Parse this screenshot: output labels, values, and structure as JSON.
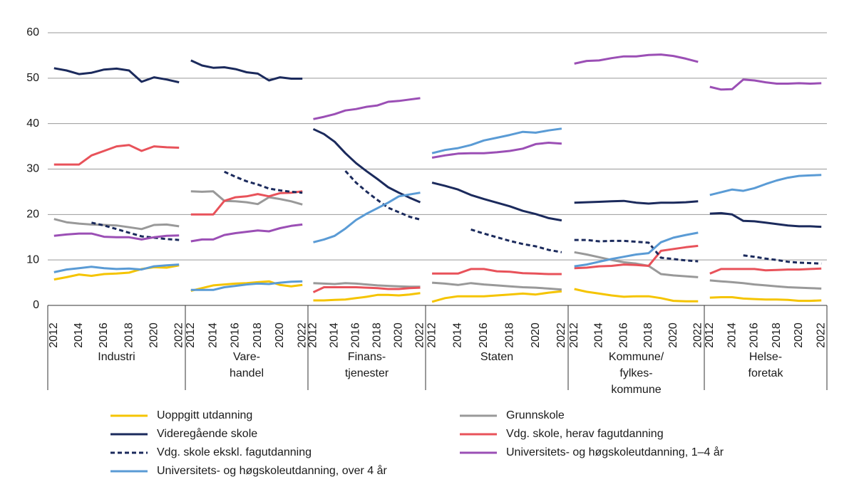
{
  "chart_data": {
    "type": "line",
    "ylim": [
      0,
      60
    ],
    "yticks": [
      0,
      10,
      20,
      30,
      40,
      50,
      60
    ],
    "grid": true,
    "categories": [
      2012,
      null,
      2014,
      null,
      2016,
      null,
      2018,
      null,
      2020,
      null,
      2022
    ],
    "panels": [
      [
        "Industri"
      ],
      [
        "Vare-",
        "handel"
      ],
      [
        "Finans-",
        "tjenester"
      ],
      [
        "Staten"
      ],
      [
        "Kommune/",
        "fylkes-",
        "kommune"
      ],
      [
        "Helse-",
        "foretak"
      ]
    ],
    "series": [
      {
        "name": "Uoppgitt utdanning",
        "color": "#f5c400",
        "dashed": false,
        "values": [
          [
            5.7,
            6.2,
            6.8,
            6.5,
            6.9,
            7.0,
            7.2,
            8.0,
            8.4,
            8.3,
            8.8
          ],
          [
            3.2,
            3.8,
            4.4,
            4.6,
            4.8,
            4.9,
            5.1,
            5.3,
            4.5,
            4.2,
            4.5
          ],
          [
            1.1,
            1.1,
            1.2,
            1.3,
            1.6,
            1.9,
            2.3,
            2.3,
            2.2,
            2.4,
            2.7
          ],
          [
            0.8,
            1.6,
            2.0,
            2.0,
            2.0,
            2.2,
            2.4,
            2.6,
            2.4,
            2.8,
            3.1
          ],
          [
            3.6,
            3.0,
            2.6,
            2.2,
            1.9,
            2.0,
            2.0,
            1.6,
            1.0,
            0.9,
            0.9
          ],
          [
            1.7,
            1.8,
            1.8,
            1.5,
            1.4,
            1.3,
            1.3,
            1.2,
            1.0,
            1.0,
            1.1
          ]
        ]
      },
      {
        "name": "Grunnskole",
        "color": "#999999",
        "dashed": false,
        "values": [
          [
            19.0,
            18.3,
            18.0,
            17.8,
            17.7,
            17.6,
            17.2,
            16.8,
            17.7,
            17.8,
            17.4
          ],
          [
            25.1,
            25.0,
            25.1,
            23.0,
            22.9,
            22.7,
            22.3,
            23.8,
            23.4,
            22.9,
            22.2
          ],
          [
            4.9,
            4.8,
            4.7,
            4.9,
            4.8,
            4.6,
            4.4,
            4.3,
            4.2,
            4.1,
            4.1
          ],
          [
            5.0,
            4.8,
            4.5,
            4.9,
            4.6,
            4.4,
            4.2,
            4.0,
            3.9,
            3.7,
            3.5
          ],
          [
            11.7,
            11.2,
            10.6,
            10.0,
            9.5,
            9.2,
            8.7,
            6.9,
            6.6,
            6.4,
            6.2
          ],
          [
            5.5,
            5.3,
            5.1,
            4.9,
            4.6,
            4.4,
            4.2,
            4.0,
            3.9,
            3.8,
            3.7
          ]
        ]
      },
      {
        "name": "Videregående skole",
        "color": "#1b2a5c",
        "dashed": false,
        "values": [
          [
            52.2,
            51.7,
            50.9,
            51.2,
            51.9,
            52.1,
            51.7,
            49.2,
            50.2,
            49.7,
            49.1
          ],
          [
            53.9,
            52.8,
            52.3,
            52.4,
            52.0,
            51.3,
            51.0,
            49.5,
            50.2,
            49.9,
            49.9
          ],
          [
            38.8,
            37.7,
            36.0,
            33.5,
            31.3,
            29.5,
            27.8,
            26.0,
            24.8,
            23.7,
            22.7
          ],
          [
            27.0,
            26.3,
            25.5,
            24.3,
            23.4,
            22.6,
            21.8,
            20.8,
            20.1,
            19.2,
            18.7
          ],
          [
            22.6,
            22.7,
            22.8,
            22.9,
            23.0,
            22.6,
            22.4,
            22.6,
            22.6,
            22.7,
            22.9
          ],
          [
            20.2,
            20.3,
            20.0,
            18.6,
            18.5,
            18.2,
            17.9,
            17.6,
            17.4,
            17.4,
            17.3
          ]
        ]
      },
      {
        "name": "Vdg. skole, herav fagutdanning",
        "color": "#e8525a",
        "dashed": false,
        "values": [
          [
            31.0,
            31.0,
            31.0,
            33.0,
            34.0,
            35.0,
            35.3,
            34.0,
            35.0,
            34.8,
            34.7
          ],
          [
            20.0,
            20.0,
            20.0,
            23.0,
            23.8,
            24.0,
            24.5,
            24.0,
            24.7,
            24.8,
            25.1
          ],
          [
            2.9,
            4.0,
            4.0,
            4.0,
            4.0,
            3.9,
            3.8,
            3.6,
            3.6,
            3.8,
            3.9
          ],
          [
            7.0,
            7.0,
            7.0,
            8.0,
            8.0,
            7.5,
            7.4,
            7.1,
            7.0,
            6.9,
            6.9
          ],
          [
            8.2,
            8.3,
            8.6,
            8.7,
            9.0,
            8.9,
            8.7,
            12.0,
            12.4,
            12.8,
            13.1
          ],
          [
            7.0,
            8.0,
            8.0,
            8.0,
            8.0,
            7.7,
            7.8,
            7.9,
            7.9,
            8.0,
            8.1
          ]
        ]
      },
      {
        "name": "Vdg. skole ekskl. fagutdanning",
        "color": "#1b2a5c",
        "dashed": true,
        "values": [
          [
            null,
            null,
            null,
            18.2,
            17.6,
            16.8,
            16.0,
            15.2,
            14.9,
            14.6,
            14.4
          ],
          [
            null,
            null,
            null,
            29.4,
            28.3,
            27.3,
            26.6,
            25.7,
            25.3,
            25.0,
            24.8
          ],
          [
            null,
            null,
            null,
            29.6,
            27.0,
            25.0,
            23.2,
            21.5,
            20.5,
            19.5,
            18.9
          ],
          [
            null,
            null,
            null,
            16.7,
            15.8,
            15.0,
            14.2,
            13.5,
            13.0,
            12.2,
            11.7
          ],
          [
            14.4,
            14.4,
            14.1,
            14.2,
            14.2,
            14.0,
            13.8,
            10.5,
            10.2,
            9.9,
            9.7
          ],
          [
            null,
            null,
            null,
            11.0,
            10.7,
            10.3,
            10.0,
            9.6,
            9.4,
            9.3,
            9.2
          ]
        ]
      },
      {
        "name": "Universitets- og høgskoleutdanning, 1–4 år",
        "color": "#9b4fb5",
        "dashed": false,
        "values": [
          [
            15.3,
            15.6,
            15.8,
            15.8,
            15.1,
            15.0,
            15.0,
            14.5,
            15.0,
            15.3,
            15.4
          ],
          [
            14.1,
            14.5,
            14.5,
            15.5,
            15.9,
            16.2,
            16.5,
            16.3,
            17.0,
            17.5,
            17.8
          ],
          [
            41.0,
            41.5,
            42.1,
            42.9,
            43.2,
            43.7,
            44.0,
            44.8,
            45.0,
            45.3,
            45.6
          ],
          [
            32.5,
            33.0,
            33.4,
            33.5,
            33.5,
            33.7,
            34.0,
            34.5,
            35.5,
            35.8,
            35.6
          ],
          [
            53.2,
            53.8,
            53.9,
            54.4,
            54.8,
            54.8,
            55.1,
            55.2,
            54.9,
            54.3,
            53.6
          ],
          [
            48.1,
            47.5,
            47.6,
            49.7,
            49.5,
            49.1,
            48.8,
            48.8,
            48.9,
            48.8,
            48.9
          ]
        ]
      },
      {
        "name": "Universitets- og høgskoleutdanning, over 4 år",
        "color": "#5a9bd5",
        "dashed": false,
        "values": [
          [
            7.3,
            7.9,
            8.2,
            8.5,
            8.2,
            8.0,
            8.1,
            7.9,
            8.6,
            8.8,
            9.0
          ],
          [
            3.4,
            3.4,
            3.4,
            4.0,
            4.3,
            4.6,
            4.8,
            4.7,
            5.0,
            5.2,
            5.3
          ],
          [
            13.9,
            14.5,
            15.3,
            16.9,
            18.8,
            20.2,
            21.4,
            22.6,
            24.0,
            24.4,
            24.8
          ],
          [
            33.5,
            34.2,
            34.6,
            35.3,
            36.3,
            36.9,
            37.5,
            38.2,
            38.0,
            38.5,
            38.9
          ],
          [
            8.6,
            9.0,
            9.6,
            10.2,
            10.7,
            11.2,
            11.5,
            13.9,
            14.9,
            15.5,
            16.0
          ],
          [
            24.3,
            24.9,
            25.5,
            25.2,
            25.8,
            26.7,
            27.5,
            28.1,
            28.5,
            28.6,
            28.7
          ]
        ]
      }
    ]
  }
}
